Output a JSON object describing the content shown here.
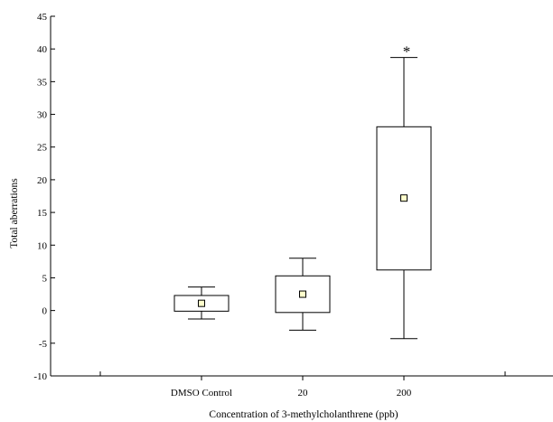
{
  "chart_data": {
    "type": "box",
    "title": "",
    "xlabel": "Concentration of 3-methylcholanthrene (ppb)",
    "ylabel": "Total aberrations",
    "ylim": [
      -10,
      45
    ],
    "yticks": [
      -10,
      -5,
      0,
      5,
      10,
      15,
      20,
      25,
      30,
      35,
      40,
      45
    ],
    "categories": [
      "DMSO Control",
      "20",
      "200"
    ],
    "boxes": [
      {
        "category": "DMSO Control",
        "whisker_low": -1.3,
        "box_low": -0.1,
        "mean": 1.1,
        "box_high": 2.3,
        "whisker_high": 3.6,
        "annotation": ""
      },
      {
        "category": "20",
        "whisker_low": -3.0,
        "box_low": -0.3,
        "mean": 2.5,
        "box_high": 5.3,
        "whisker_high": 8.0,
        "annotation": ""
      },
      {
        "category": "200",
        "whisker_low": -4.3,
        "box_low": 6.2,
        "mean": 17.2,
        "box_high": 28.1,
        "whisker_high": 38.7,
        "annotation": "*"
      }
    ],
    "grid": false,
    "legend": "none",
    "colors": {
      "axis": "#000000",
      "box_fill": "#ffffff",
      "mean_marker_fill": "#ffffcc"
    }
  }
}
